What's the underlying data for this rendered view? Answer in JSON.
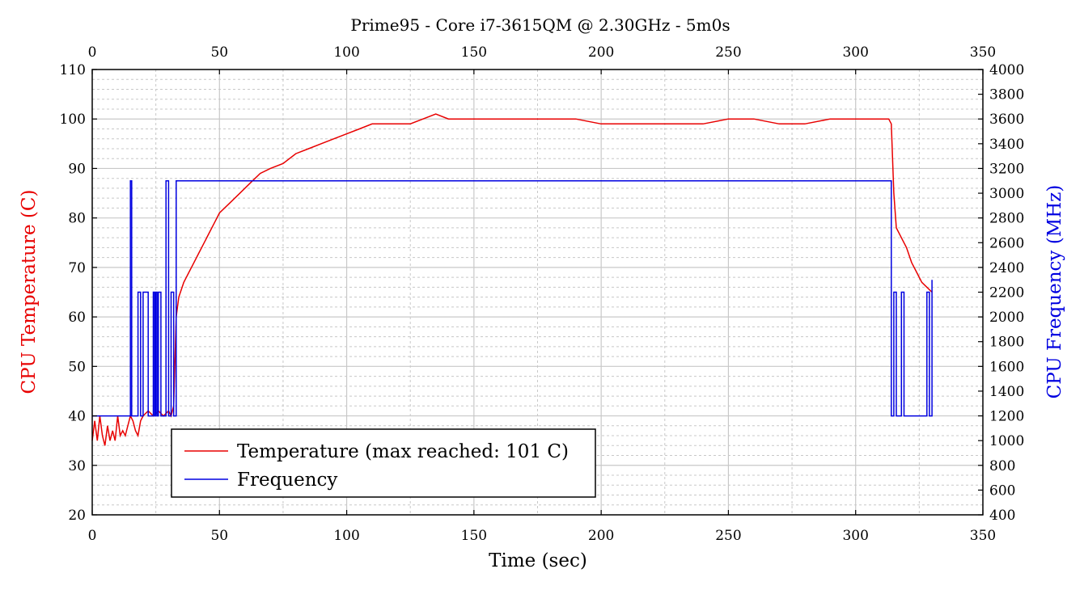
{
  "chart_data": {
    "type": "line",
    "title": "Prime95 - Core i7-3615QM @ 2.30GHz - 5m0s",
    "xlabel": "Time (sec)",
    "ylabel": "CPU Temperature (C)",
    "y2label": "CPU Frequency (MHz)",
    "xlim": [
      0,
      350
    ],
    "ylim": [
      20,
      110
    ],
    "y2lim": [
      400,
      4000
    ],
    "x_ticks": [
      0,
      50,
      100,
      150,
      200,
      250,
      300,
      350
    ],
    "y_ticks": [
      20,
      30,
      40,
      50,
      60,
      70,
      80,
      90,
      100,
      110
    ],
    "y2_ticks": [
      400,
      600,
      800,
      1000,
      1200,
      1400,
      1600,
      1800,
      2000,
      2200,
      2400,
      2600,
      2800,
      3000,
      3200,
      3400,
      3600,
      3800,
      4000
    ],
    "grid": true,
    "legend_position": "bottom-left",
    "series": [
      {
        "name": "Temperature (max reached: 101 C)",
        "axis": "left",
        "color": "#e80000",
        "x": [
          0,
          1,
          2,
          3,
          4,
          5,
          6,
          7,
          8,
          9,
          10,
          11,
          12,
          13,
          14,
          15,
          16,
          17,
          18,
          19,
          20,
          22,
          24,
          26,
          28,
          30,
          31,
          32,
          33,
          34,
          36,
          38,
          40,
          42,
          44,
          46,
          48,
          50,
          54,
          58,
          62,
          66,
          70,
          75,
          80,
          85,
          90,
          95,
          100,
          105,
          110,
          115,
          120,
          125,
          130,
          135,
          140,
          150,
          160,
          170,
          180,
          190,
          200,
          210,
          220,
          230,
          240,
          250,
          260,
          270,
          280,
          290,
          300,
          305,
          310,
          313,
          314,
          315,
          316,
          318,
          320,
          322,
          324,
          326,
          328,
          330
        ],
        "y": [
          35,
          39,
          35,
          40,
          36,
          34,
          38,
          35,
          37,
          35,
          40,
          36,
          37,
          36,
          38,
          40,
          39,
          37,
          36,
          39,
          40,
          41,
          40,
          41,
          40,
          41,
          40,
          42,
          60,
          64,
          67,
          69,
          71,
          73,
          75,
          77,
          79,
          81,
          83,
          85,
          87,
          89,
          90,
          91,
          93,
          94,
          95,
          96,
          97,
          98,
          99,
          99,
          99,
          99,
          100,
          101,
          100,
          100,
          100,
          100,
          100,
          100,
          99,
          99,
          99,
          99,
          99,
          100,
          100,
          99,
          99,
          100,
          100,
          100,
          100,
          100,
          99,
          85,
          78,
          76,
          74,
          71,
          69,
          67,
          66,
          65
        ]
      },
      {
        "name": "Frequency",
        "axis": "right",
        "color": "#0000e0",
        "x": [
          0,
          15,
          15,
          15.5,
          15.5,
          18,
          18,
          19,
          19,
          20,
          20,
          22,
          22,
          24,
          24,
          24.5,
          24.5,
          25,
          25,
          25.5,
          25.5,
          26,
          26,
          27,
          27,
          29,
          29,
          30,
          30,
          31,
          31,
          32,
          32,
          33,
          33,
          314,
          314,
          315,
          315,
          316,
          316,
          318,
          318,
          319,
          319,
          328,
          328,
          329,
          329,
          330,
          330
        ],
        "y": [
          1200,
          1200,
          3100,
          3100,
          1200,
          1200,
          2200,
          2200,
          1200,
          1200,
          2200,
          2200,
          1200,
          1200,
          2200,
          2200,
          1200,
          1200,
          2200,
          2200,
          1200,
          1200,
          2200,
          2200,
          1200,
          1200,
          3100,
          3100,
          1200,
          1200,
          2200,
          2200,
          1200,
          1200,
          3100,
          3100,
          1200,
          1200,
          2200,
          2200,
          1200,
          1200,
          2200,
          2200,
          1200,
          1200,
          2200,
          2200,
          1200,
          1200,
          2300
        ]
      }
    ]
  }
}
